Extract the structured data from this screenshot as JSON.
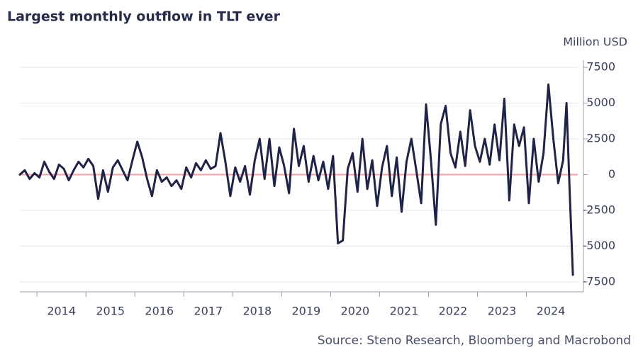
{
  "chart_data": {
    "type": "line",
    "title": "Largest monthly outflow in TLT ever",
    "y_label": "Million USD",
    "source": "Source: Steno Research, Bloomberg and Macrobond",
    "color": "#1f2447",
    "grid": true,
    "x": [
      2013.65,
      2013.75,
      2013.85,
      2013.95,
      2014.05,
      2014.15,
      2014.25,
      2014.35,
      2014.45,
      2014.55,
      2014.65,
      2014.75,
      2014.85,
      2014.95,
      2015.05,
      2015.15,
      2015.25,
      2015.35,
      2015.45,
      2015.55,
      2015.65,
      2015.75,
      2015.85,
      2015.95,
      2016.05,
      2016.15,
      2016.25,
      2016.35,
      2016.45,
      2016.55,
      2016.65,
      2016.75,
      2016.85,
      2016.95,
      2017.05,
      2017.15,
      2017.25,
      2017.35,
      2017.45,
      2017.55,
      2017.65,
      2017.75,
      2017.85,
      2017.95,
      2018.05,
      2018.15,
      2018.25,
      2018.35,
      2018.45,
      2018.55,
      2018.65,
      2018.75,
      2018.85,
      2018.95,
      2019.05,
      2019.15,
      2019.25,
      2019.35,
      2019.45,
      2019.55,
      2019.65,
      2019.75,
      2019.85,
      2019.95,
      2020.05,
      2020.15,
      2020.25,
      2020.35,
      2020.45,
      2020.55,
      2020.65,
      2020.75,
      2020.85,
      2020.95,
      2021.05,
      2021.15,
      2021.25,
      2021.35,
      2021.45,
      2021.55,
      2021.65,
      2021.75,
      2021.85,
      2021.95,
      2022.05,
      2022.15,
      2022.25,
      2022.35,
      2022.45,
      2022.55,
      2022.65,
      2022.75,
      2022.85,
      2022.95,
      2023.05,
      2023.15,
      2023.25,
      2023.35,
      2023.45,
      2023.55,
      2023.65,
      2023.75,
      2023.85,
      2023.95,
      2024.05,
      2024.15,
      2024.25,
      2024.35,
      2024.45,
      2024.55,
      2024.65,
      2024.75,
      2024.82,
      2024.88,
      2024.95
    ],
    "values": [
      0,
      300,
      -300,
      100,
      -200,
      900,
      200,
      -300,
      700,
      400,
      -400,
      300,
      900,
      500,
      1100,
      600,
      -1700,
      300,
      -1200,
      500,
      1000,
      300,
      -400,
      1000,
      2300,
      1200,
      -300,
      -1500,
      300,
      -500,
      -200,
      -800,
      -400,
      -1000,
      500,
      -200,
      800,
      300,
      1000,
      400,
      600,
      2900,
      900,
      -1500,
      500,
      -500,
      600,
      -1400,
      1000,
      2500,
      -300,
      2500,
      -800,
      1900,
      600,
      -1300,
      3200,
      600,
      2000,
      -500,
      1300,
      -400,
      900,
      -1000,
      1300,
      -4800,
      -4600,
      400,
      1500,
      -1200,
      2500,
      -1000,
      1000,
      -2200,
      500,
      2000,
      -1500,
      1200,
      -2600,
      900,
      2500,
      300,
      -2000,
      4900,
      1000,
      -3500,
      3500,
      4800,
      1500,
      500,
      3000,
      600,
      4500,
      2000,
      900,
      2500,
      700,
      3500,
      1000,
      5300,
      -1800,
      3500,
      2000,
      3300,
      -2000,
      2500,
      -500,
      1500,
      6300,
      2500,
      -600,
      1000,
      5000,
      -800,
      -7000
    ],
    "xlim": [
      2013.65,
      2025.05
    ],
    "xticks": [
      {
        "value": 2014,
        "label": "2014"
      },
      {
        "value": 2015,
        "label": "2015"
      },
      {
        "value": 2016,
        "label": "2016"
      },
      {
        "value": 2017,
        "label": "2017"
      },
      {
        "value": 2018,
        "label": "2018"
      },
      {
        "value": 2019,
        "label": "2019"
      },
      {
        "value": 2020,
        "label": "2020"
      },
      {
        "value": 2021,
        "label": "2021"
      },
      {
        "value": 2022,
        "label": "2022"
      },
      {
        "value": 2023,
        "label": "2023"
      },
      {
        "value": 2024,
        "label": "2024"
      }
    ],
    "ylim": [
      -8000,
      8000
    ],
    "yticks": [
      7500,
      5000,
      2500,
      0,
      -2500,
      -5000,
      -7500
    ]
  }
}
